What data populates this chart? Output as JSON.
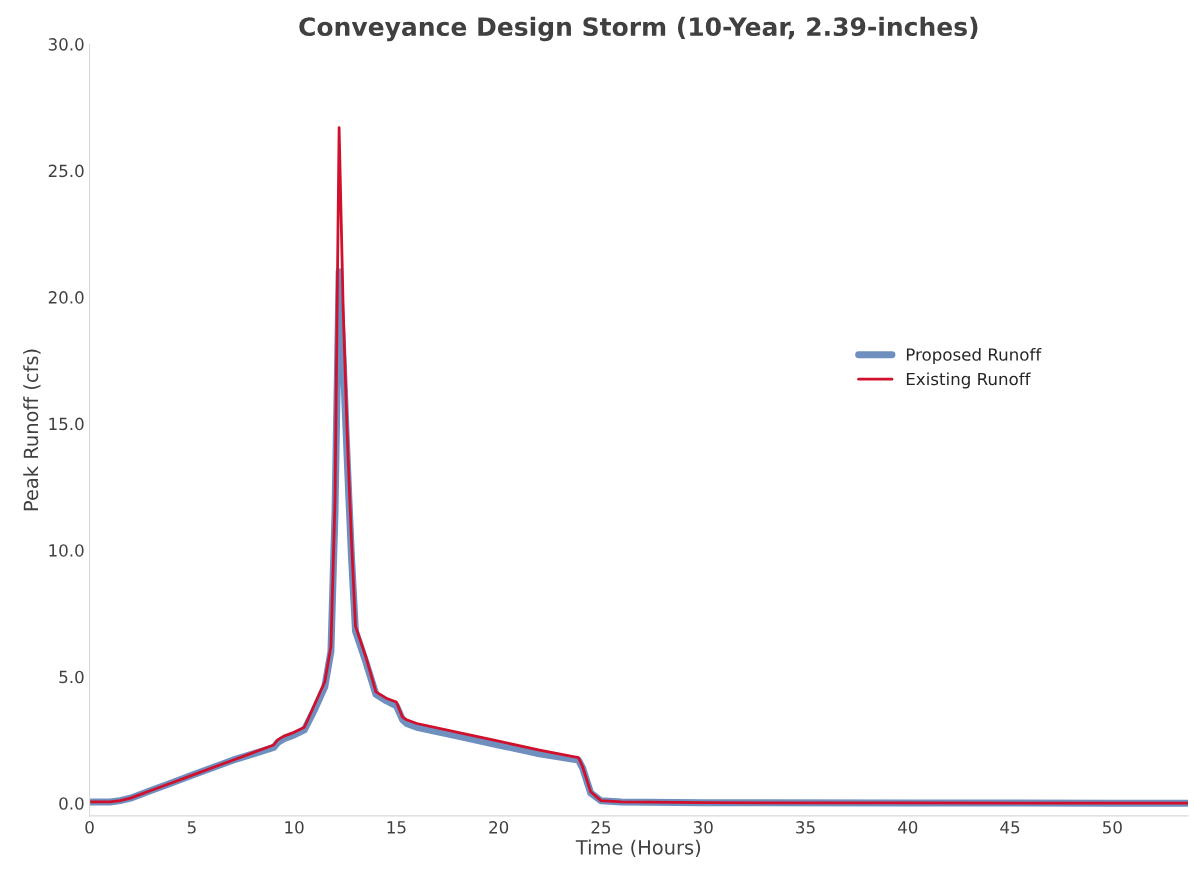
{
  "chart_data": {
    "type": "line",
    "title": "Conveyance Design Storm (10-Year, 2.39-inches)",
    "xlabel": "Time (Hours)",
    "ylabel": "Peak Runoff (cfs)",
    "x": [
      0,
      1,
      1.5,
      2,
      3,
      4,
      5,
      6,
      7,
      8,
      9,
      9.2,
      9.5,
      10,
      10.5,
      11,
      11.5,
      11.8,
      12,
      12.2,
      12.4,
      12.6,
      12.8,
      13,
      13.5,
      14,
      14.5,
      15,
      15.3,
      15.5,
      16,
      18,
      20,
      22,
      23.9,
      24.1,
      24.5,
      25,
      26,
      30,
      40,
      50,
      53.7
    ],
    "series": [
      {
        "name": "Proposed Runoff",
        "color": "#6f8fbf",
        "values": [
          0.05,
          0.05,
          0.1,
          0.2,
          0.5,
          0.8,
          1.1,
          1.4,
          1.7,
          1.95,
          2.2,
          2.4,
          2.55,
          2.7,
          2.9,
          3.7,
          4.6,
          6.0,
          11.5,
          21.0,
          17.5,
          13.5,
          9.8,
          6.8,
          5.6,
          4.3,
          4.05,
          3.85,
          3.3,
          3.15,
          3.0,
          2.65,
          2.3,
          1.95,
          1.7,
          1.4,
          0.4,
          0.1,
          0.05,
          0.02,
          0.01,
          0.0,
          0.0
        ]
      },
      {
        "name": "Existing Runoff",
        "color": "#d0102c",
        "values": [
          0.05,
          0.05,
          0.1,
          0.2,
          0.5,
          0.8,
          1.1,
          1.4,
          1.7,
          2.0,
          2.3,
          2.5,
          2.65,
          2.8,
          3.0,
          3.9,
          4.8,
          6.2,
          12.0,
          26.7,
          19.5,
          14.5,
          10.5,
          7.0,
          5.8,
          4.4,
          4.15,
          4.0,
          3.4,
          3.3,
          3.15,
          2.8,
          2.45,
          2.1,
          1.8,
          1.45,
          0.45,
          0.1,
          0.05,
          0.02,
          0.01,
          0.0,
          0.0
        ]
      }
    ],
    "xlim": [
      0,
      53.7
    ],
    "xticks": [
      0,
      5,
      10,
      15,
      20,
      25,
      30,
      35,
      40,
      45,
      50
    ],
    "ylim": [
      -0.5,
      30
    ],
    "yticks": [
      {
        "value": 0,
        "label": "0.0"
      },
      {
        "value": 5,
        "label": "5.0"
      },
      {
        "value": 10,
        "label": "10.0"
      },
      {
        "value": 15,
        "label": "15.0"
      },
      {
        "value": 20,
        "label": "20.0"
      },
      {
        "value": 25,
        "label": "25.0"
      },
      {
        "value": 30,
        "label": "30.0"
      }
    ],
    "grid": false,
    "legend": "right",
    "marker": "none",
    "line_style": "solid"
  }
}
